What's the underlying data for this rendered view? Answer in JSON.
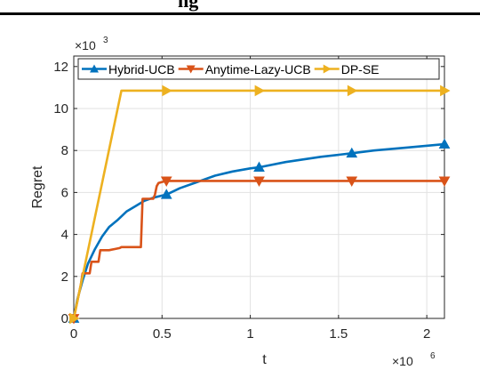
{
  "header_fragment": "ng",
  "chart_data": {
    "type": "line",
    "xlabel": "t",
    "ylabel": "Regret",
    "x_multiplier": "×10",
    "x_exponent": "6",
    "y_multiplier": "×10",
    "y_exponent": "3",
    "xlim": [
      0,
      2.1
    ],
    "ylim": [
      0,
      12.5
    ],
    "x_ticks": [
      0,
      0.5,
      1,
      1.5,
      2
    ],
    "x_tick_labels": [
      "0",
      "0.5",
      "1",
      "1.5",
      "2"
    ],
    "y_ticks": [
      0,
      2,
      4,
      6,
      8,
      10,
      12
    ],
    "y_tick_labels": [
      "0",
      "2",
      "4",
      "6",
      "8",
      "10",
      "12"
    ],
    "grid": true,
    "legend_position": "top",
    "series": [
      {
        "name": "Hybrid-UCB",
        "color": "#0072BD",
        "marker": "triangle-up",
        "x": [
          0,
          0.02,
          0.05,
          0.08,
          0.12,
          0.16,
          0.2,
          0.25,
          0.3,
          0.35,
          0.4,
          0.45,
          0.5,
          0.525,
          0.6,
          0.7,
          0.8,
          0.9,
          1.0,
          1.05,
          1.2,
          1.4,
          1.575,
          1.7,
          1.9,
          2.1
        ],
        "y": [
          0,
          0.9,
          1.8,
          2.6,
          3.3,
          3.9,
          4.35,
          4.7,
          5.1,
          5.35,
          5.6,
          5.75,
          5.85,
          5.9,
          6.2,
          6.5,
          6.8,
          7.0,
          7.15,
          7.2,
          7.45,
          7.7,
          7.87,
          8.0,
          8.15,
          8.3
        ],
        "marker_x": [
          0,
          0.525,
          1.05,
          1.575,
          2.1
        ]
      },
      {
        "name": "Anytime-Lazy-UCB",
        "color": "#D95319",
        "marker": "triangle-down",
        "x": [
          0,
          0.04,
          0.05,
          0.09,
          0.1,
          0.14,
          0.15,
          0.2,
          0.26,
          0.27,
          0.38,
          0.39,
          0.45,
          0.46,
          0.47,
          0.48,
          0.5,
          0.525,
          0.6,
          1.0,
          1.05,
          1.5,
          1.575,
          2.1
        ],
        "y": [
          0,
          1.6,
          2.15,
          2.15,
          2.7,
          2.7,
          3.25,
          3.25,
          3.35,
          3.4,
          3.4,
          5.7,
          5.7,
          5.9,
          6.3,
          6.45,
          6.5,
          6.55,
          6.55,
          6.55,
          6.55,
          6.55,
          6.55,
          6.55
        ],
        "marker_x": [
          0,
          0.525,
          1.05,
          1.575,
          2.1
        ]
      },
      {
        "name": "DP-SE",
        "color": "#EDB120",
        "marker": "triangle-right",
        "x": [
          0,
          0.27,
          0.525,
          1.05,
          1.575,
          2.1
        ],
        "y": [
          0,
          10.85,
          10.85,
          10.85,
          10.85,
          10.85
        ],
        "marker_x": [
          0,
          0.525,
          1.05,
          1.575,
          2.1
        ]
      }
    ]
  }
}
